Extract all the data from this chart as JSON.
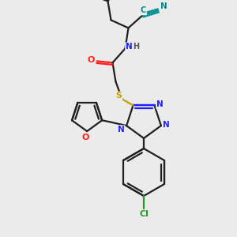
{
  "background_color": "#ebebeb",
  "colors": {
    "C": "#202020",
    "N": "#2020ff",
    "O": "#ff2020",
    "S": "#c8a000",
    "Cl": "#20a020",
    "CN": "#008b8b"
  },
  "lw": 1.6,
  "fs": 7.5
}
